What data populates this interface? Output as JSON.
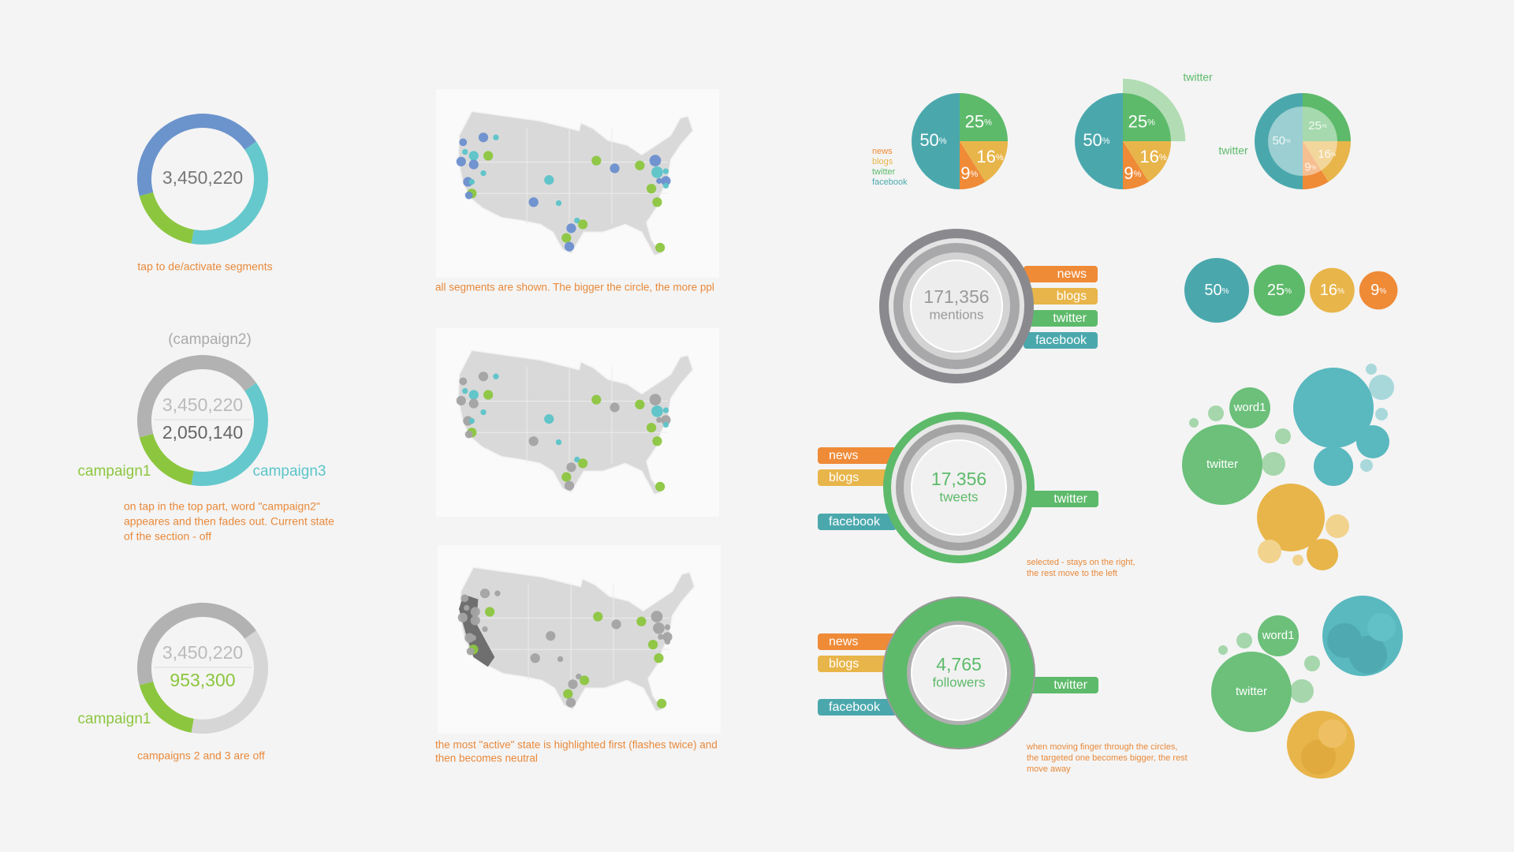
{
  "donuts": [
    {
      "total": "3,450,220",
      "caption": [
        "tap to de/activate segments"
      ]
    },
    {
      "hint": "(campaign2)",
      "total": "3,450,220",
      "selected": "2,050,140",
      "left_label": "campaign1",
      "right_label": "campaign3",
      "caption": [
        "on tap in the top part, word \"campaign2\"",
        "appeares and then fades out. Current state",
        "of the section - off"
      ]
    },
    {
      "total": "3,450,220",
      "selected": "953,300",
      "left_label": "campaign1",
      "caption": [
        "campaigns 2 and 3 are off"
      ]
    }
  ],
  "map_captions": [
    [
      "all segments are shown. The bigger the circle, the more ppl"
    ],
    [
      "the most \"active\" state is highlighted first (flashes twice) and",
      "then becomes neutral"
    ]
  ],
  "pies": {
    "segments": [
      {
        "name": "facebook",
        "color": "#4aa8ad",
        "value": 50
      },
      {
        "name": "twitter",
        "color": "#5dba6a",
        "value": 25
      },
      {
        "name": "blogs",
        "color": "#e8b54a",
        "value": 16
      },
      {
        "name": "news",
        "color": "#ef8a37",
        "value": 9
      }
    ],
    "percent_sign": "%"
  },
  "rings": [
    {
      "value": "171,356",
      "unit": "mentions"
    },
    {
      "value": "17,356",
      "unit": "tweets",
      "caption": [
        "selected - stays on the right,",
        "the rest move to the left"
      ]
    },
    {
      "value": "4,765",
      "unit": "followers",
      "caption": [
        "when moving finger through the circles,",
        "the targeted one becomes bigger, the rest",
        "move away"
      ]
    }
  ],
  "word_clusters": [
    {
      "labels": [
        "word1",
        "twitter"
      ]
    },
    {
      "labels": [
        "word1",
        "twitter"
      ]
    }
  ]
}
